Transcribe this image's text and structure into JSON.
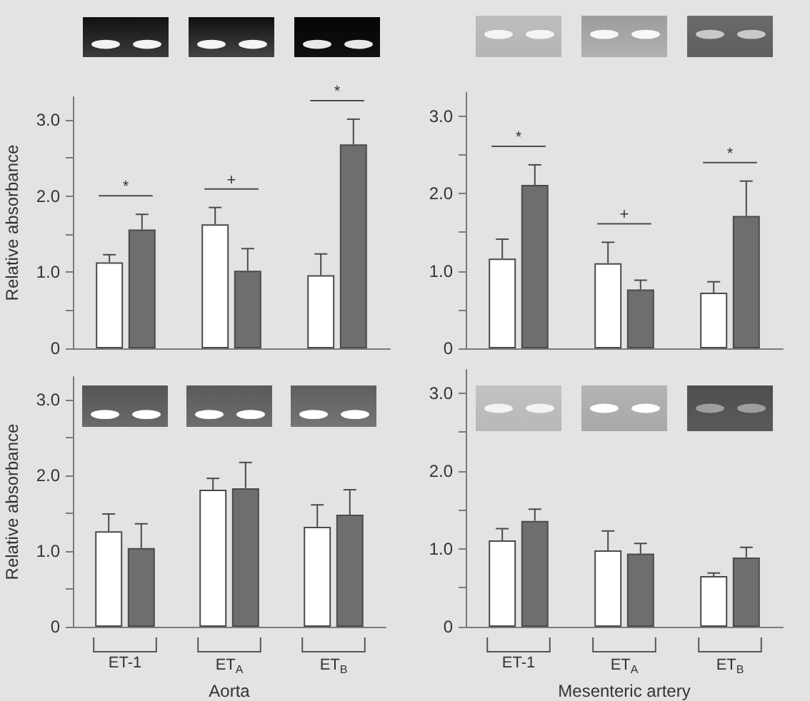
{
  "chart_data": [
    {
      "type": "bar",
      "categories": [
        null,
        null,
        null
      ],
      "ylabel": "Relative absorbance",
      "ylim": [
        0,
        3.3
      ],
      "yticks": [
        {
          "value": 0,
          "label": "0"
        },
        {
          "value": 0.5,
          "label": null
        },
        {
          "value": 1,
          "label": "1.0"
        },
        {
          "value": 1.5,
          "label": null
        },
        {
          "value": 2,
          "label": "2.0"
        },
        {
          "value": 2.5,
          "label": null
        },
        {
          "value": 3,
          "label": "3.0"
        }
      ],
      "series": [
        {
          "color": "#ffffff",
          "values": [
            1.13,
            1.63,
            0.96
          ],
          "errors": [
            [
              1.13,
              1.23
            ],
            [
              1.63,
              1.85
            ],
            [
              0.96,
              1.24
            ]
          ]
        },
        {
          "color": "#6e6e6e",
          "values": [
            1.56,
            1.02,
            2.68
          ],
          "errors": [
            [
              1.56,
              1.76
            ],
            [
              1.02,
              1.31
            ],
            [
              2.68,
              3.01
            ]
          ]
        }
      ],
      "annotations": [
        "*",
        "+",
        "*"
      ]
    },
    {
      "type": "bar",
      "categories": [
        null,
        null,
        null
      ],
      "ylim": [
        0,
        3.3
      ],
      "yticks": [
        {
          "value": 0,
          "label": "0"
        },
        {
          "value": 0.5,
          "label": null
        },
        {
          "value": 1,
          "label": "1.0"
        },
        {
          "value": 1.5,
          "label": null
        },
        {
          "value": 2,
          "label": "2.0"
        },
        {
          "value": 2.5,
          "label": null
        },
        {
          "value": 3,
          "label": "3.0"
        }
      ],
      "series": [
        {
          "color": "#ffffff",
          "values": [
            1.16,
            1.1,
            0.72
          ],
          "errors": [
            [
              1.16,
              1.41
            ],
            [
              1.1,
              1.37
            ],
            [
              0.72,
              0.86
            ]
          ]
        },
        {
          "color": "#6e6e6e",
          "values": [
            2.11,
            0.76,
            1.71
          ],
          "errors": [
            [
              2.11,
              2.37
            ],
            [
              0.76,
              0.88
            ],
            [
              1.71,
              2.16
            ]
          ]
        }
      ],
      "annotations": [
        "*",
        "+",
        "*"
      ]
    },
    {
      "type": "bar",
      "categories": [
        "ET-1",
        "ET$_{A}$",
        "ET$_{B}$"
      ],
      "xlabel": "Aorta",
      "ylabel": "Relative absorbance",
      "ylim": [
        0,
        3.3
      ],
      "yticks": [
        {
          "value": 0,
          "label": "0"
        },
        {
          "value": 0.5,
          "label": null
        },
        {
          "value": 1,
          "label": "1.0"
        },
        {
          "value": 1.5,
          "label": null
        },
        {
          "value": 2,
          "label": "2.0"
        },
        {
          "value": 2.5,
          "label": null
        },
        {
          "value": 3,
          "label": "3.0"
        }
      ],
      "series": [
        {
          "color": "#ffffff",
          "values": [
            1.26,
            1.81,
            1.32
          ],
          "errors": [
            [
              1.26,
              1.49
            ],
            [
              1.81,
              1.96
            ],
            [
              1.32,
              1.61
            ]
          ]
        },
        {
          "color": "#6e6e6e",
          "values": [
            1.04,
            1.83,
            1.48
          ],
          "errors": [
            [
              1.04,
              1.36
            ],
            [
              1.83,
              2.17
            ],
            [
              1.48,
              1.81
            ]
          ]
        }
      ]
    },
    {
      "type": "bar",
      "categories": [
        "ET-1",
        "ET$_{A}$",
        "ET$_{B}$"
      ],
      "xlabel": "Mesenteric artery",
      "ylim": [
        0,
        3.3
      ],
      "yticks": [
        {
          "value": 0,
          "label": "0"
        },
        {
          "value": 0.5,
          "label": null
        },
        {
          "value": 1,
          "label": "1.0"
        },
        {
          "value": 1.5,
          "label": null
        },
        {
          "value": 2,
          "label": "2.0"
        },
        {
          "value": 2.5,
          "label": null
        },
        {
          "value": 3,
          "label": "3.0"
        }
      ],
      "series": [
        {
          "color": "#ffffff",
          "values": [
            1.11,
            0.98,
            0.65
          ],
          "errors": [
            [
              1.11,
              1.26
            ],
            [
              0.98,
              1.23
            ],
            [
              0.65,
              0.69
            ]
          ]
        },
        {
          "color": "#6e6e6e",
          "values": [
            1.36,
            0.94,
            0.89
          ],
          "errors": [
            [
              1.36,
              1.51
            ],
            [
              0.94,
              1.07
            ],
            [
              0.89,
              1.02
            ]
          ]
        }
      ]
    }
  ]
}
